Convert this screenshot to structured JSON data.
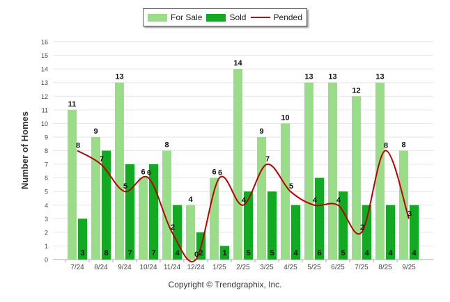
{
  "chart_data": {
    "type": "bar",
    "ylabel": "Number of Homes",
    "xlabel": "",
    "ylim": [
      0,
      16
    ],
    "yticks": [
      0,
      1,
      2,
      3,
      4,
      5,
      6,
      7,
      8,
      9,
      10,
      11,
      12,
      13,
      14,
      15,
      16
    ],
    "categories": [
      "7/24",
      "8/24",
      "9/24",
      "10/24",
      "11/24",
      "12/24",
      "1/25",
      "2/25",
      "3/25",
      "4/25",
      "5/25",
      "6/25",
      "7/25",
      "8/25",
      "9/25"
    ],
    "series": [
      {
        "name": "For Sale",
        "kind": "bar",
        "color": "#99dd88",
        "values": [
          11,
          9,
          13,
          6,
          8,
          4,
          6,
          14,
          9,
          10,
          13,
          13,
          12,
          13,
          8
        ]
      },
      {
        "name": "Sold",
        "kind": "bar",
        "color": "#11aa22",
        "values": [
          3,
          8,
          7,
          7,
          4,
          2,
          1,
          5,
          5,
          4,
          6,
          5,
          4,
          4,
          4
        ]
      },
      {
        "name": "Pended",
        "kind": "line",
        "color": "#bb0000",
        "values": [
          8,
          7,
          5,
          6,
          2,
          0,
          6,
          4,
          7,
          5,
          4,
          4,
          2,
          8,
          3
        ]
      }
    ],
    "legend_position": "top-center"
  },
  "footer": "Copyright © Trendgraphix, Inc."
}
